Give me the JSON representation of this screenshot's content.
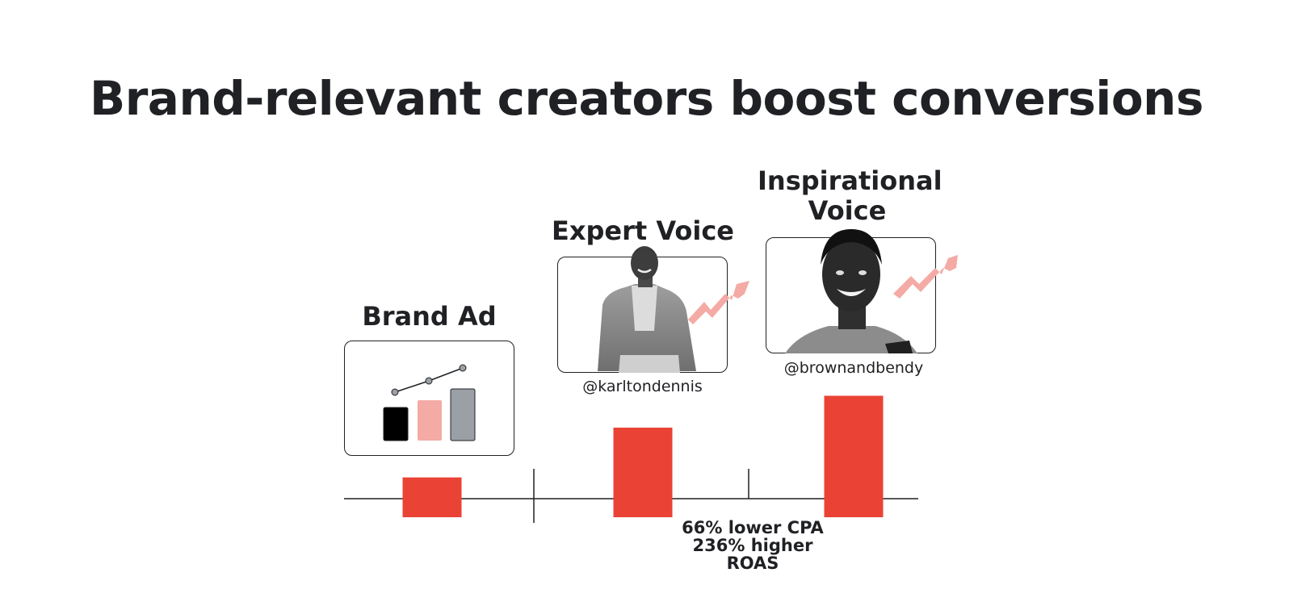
{
  "slide": {
    "title": "Brand-relevant creators boost conversions"
  },
  "columns": [
    {
      "label": "Brand Ad",
      "handle": ""
    },
    {
      "label": "Expert Voice",
      "handle": "@karltondennis"
    },
    {
      "label": "Inspirational Voice",
      "handle": "@brownandbendy"
    }
  ],
  "annotation": {
    "line1": "66% lower CPA",
    "line2": "236% higher ROAS"
  },
  "colors": {
    "bar": "#ea4335",
    "arrow": "#f4aaa5",
    "icon_bar_1": "#000000",
    "icon_bar_2": "#f4aaa5",
    "icon_bar_3": "#9aa0a6"
  },
  "icons": [
    "bar-chart-trend-icon",
    "trend-up-arrow-icon",
    "creator-photo-icon"
  ],
  "chart_data": {
    "type": "bar",
    "categories": [
      "Brand Ad",
      "Expert Voice",
      "Inspirational Voice"
    ],
    "values": [
      1.0,
      2.25,
      3.05
    ],
    "title": "Brand-relevant creators boost conversions",
    "xlabel": "",
    "ylabel": "",
    "ylim": [
      0,
      3.1
    ],
    "grid": false,
    "legend": "none"
  }
}
